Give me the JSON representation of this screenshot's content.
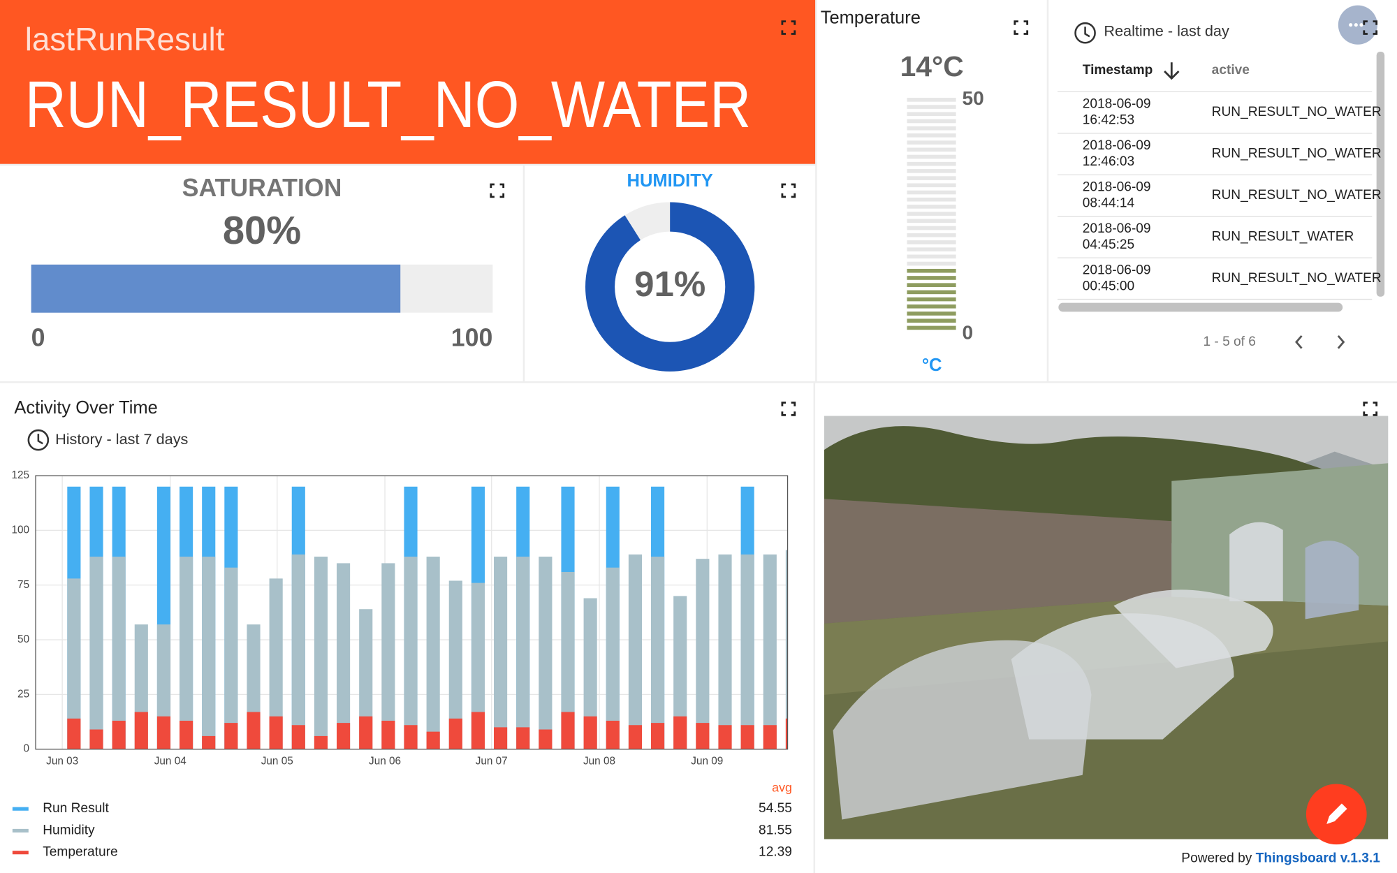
{
  "last_run_result": {
    "label": "lastRunResult",
    "value": "RUN_RESULT_NO_WATER"
  },
  "chart_data": [
    {
      "type": "progress",
      "title": "SATURATION",
      "values": [
        80
      ],
      "value_labels": [
        "80%"
      ],
      "xlim": [
        0,
        100
      ],
      "xticks": [
        0,
        100
      ],
      "color": "#618ccc"
    },
    {
      "type": "donut",
      "title": "HUMIDITY",
      "values": [
        91
      ],
      "value_labels": [
        "91%"
      ],
      "ylim": [
        0,
        100
      ],
      "color": "#1c55b4"
    },
    {
      "type": "thermometer",
      "title": "Temperature",
      "values": [
        14
      ],
      "value_labels": [
        "14°C"
      ],
      "unit": "°C",
      "ylim": [
        0,
        50
      ],
      "yticks": [
        0,
        50
      ],
      "color": "#8e9c5f"
    },
    {
      "type": "bar",
      "title": "Activity Over Time",
      "subtitle": "History - last 7 days",
      "bar_mode": "overlap",
      "grid": true,
      "categories": [
        null,
        null,
        null,
        null,
        null,
        null,
        null,
        null,
        null,
        null,
        null,
        null,
        null,
        null,
        null,
        null,
        null,
        null,
        null,
        null,
        null,
        null,
        null,
        null,
        null,
        null,
        null,
        null,
        null,
        null,
        null,
        null,
        null
      ],
      "xticks": [
        {
          "value": -0.52,
          "label": "Jun 03"
        },
        {
          "value": 4.29,
          "label": "Jun 04"
        },
        {
          "value": 9.05,
          "label": "Jun 05"
        },
        {
          "value": 13.85,
          "label": "Jun 06"
        },
        {
          "value": 18.6,
          "label": "Jun 07"
        },
        {
          "value": 23.4,
          "label": "Jun 08"
        },
        {
          "value": 28.2,
          "label": "Jun 09"
        }
      ],
      "ylim": [
        0,
        125
      ],
      "yticks": [
        0,
        25,
        50,
        75,
        100,
        125
      ],
      "legend_header": "avg",
      "series": [
        {
          "name": "Run Result",
          "color": "#45aff2",
          "avg": 54.55,
          "values": [
            120,
            120,
            120,
            null,
            120,
            120,
            120,
            120,
            null,
            null,
            120,
            null,
            null,
            null,
            null,
            120,
            null,
            null,
            120,
            null,
            120,
            null,
            120,
            null,
            120,
            null,
            120,
            null,
            null,
            null,
            120,
            null,
            null
          ]
        },
        {
          "name": "Humidity",
          "color": "#a8c0c9",
          "avg": 81.55,
          "values": [
            78,
            88,
            88,
            57,
            57,
            88,
            88,
            83,
            57,
            78,
            89,
            88,
            85,
            64,
            85,
            88,
            88,
            77,
            76,
            88,
            88,
            88,
            81,
            69,
            83,
            89,
            88,
            70,
            87,
            89,
            89,
            89,
            91
          ]
        },
        {
          "name": "Temperature",
          "color": "#ef4a3c",
          "avg": 12.39,
          "values": [
            14,
            9,
            13,
            17,
            15,
            13,
            6,
            12,
            17,
            15,
            11,
            6,
            12,
            15,
            13,
            11,
            8,
            14,
            17,
            10,
            10,
            9,
            17,
            15,
            13,
            11,
            12,
            15,
            12,
            11,
            11,
            11,
            14
          ]
        }
      ]
    }
  ],
  "table": {
    "title": "Realtime - last day",
    "columns": [
      "Timestamp",
      "active"
    ],
    "rows": [
      {
        "timestamp": {
          "date": "2018-06-09",
          "time": "16:42:53"
        },
        "active": "RUN_RESULT_NO_WATER"
      },
      {
        "timestamp": {
          "date": "2018-06-09",
          "time": "12:46:03"
        },
        "active": "RUN_RESULT_NO_WATER"
      },
      {
        "timestamp": {
          "date": "2018-06-09",
          "time": "08:44:14"
        },
        "active": "RUN_RESULT_NO_WATER"
      },
      {
        "timestamp": {
          "date": "2018-06-09",
          "time": "04:45:25"
        },
        "active": "RUN_RESULT_WATER"
      },
      {
        "timestamp": {
          "date": "2018-06-09",
          "time": "00:45:00"
        },
        "active": "RUN_RESULT_NO_WATER"
      }
    ],
    "pagination": "1 - 5 of 6"
  },
  "footer": {
    "powered_by": "Powered by",
    "link": "Thingsboard v.1.3.1"
  }
}
